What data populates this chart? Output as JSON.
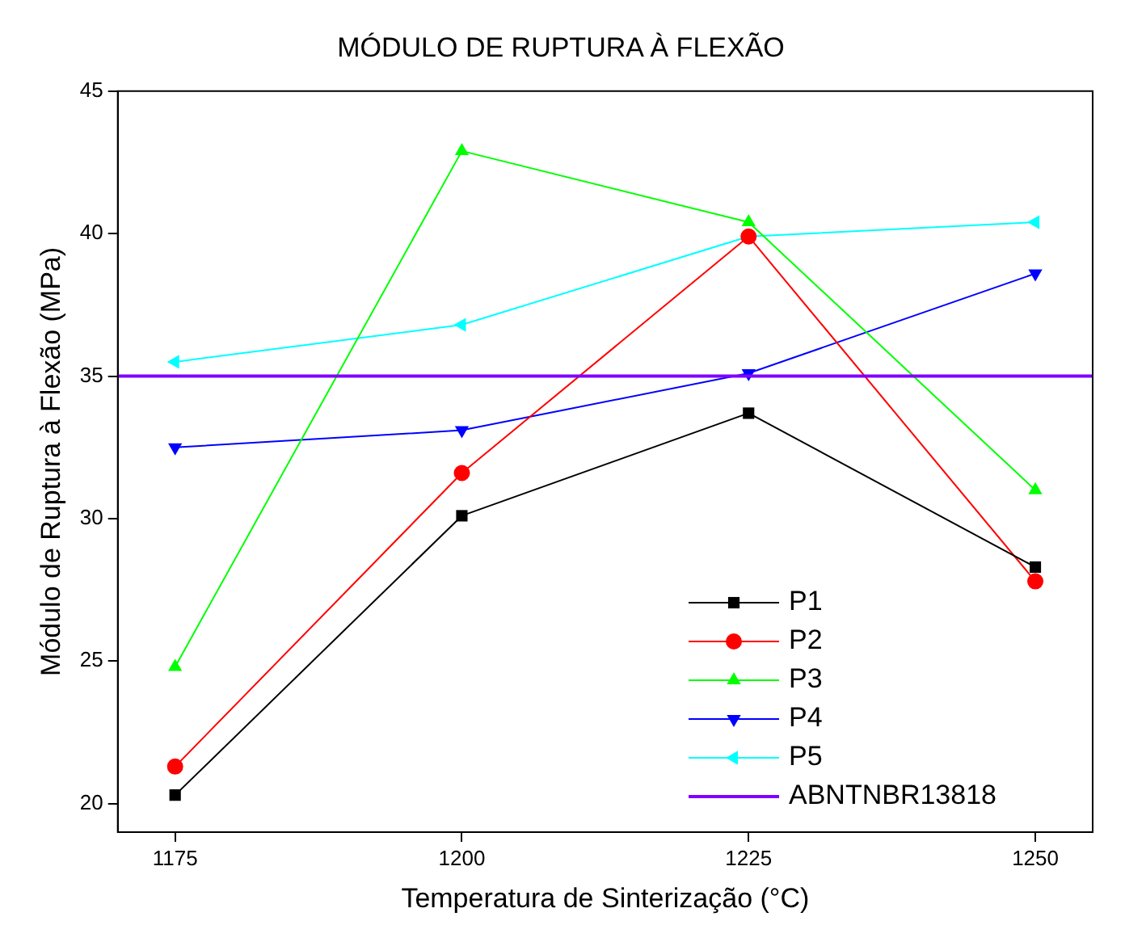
{
  "chart_data": {
    "type": "line",
    "title": "MÓDULO DE RUPTURA À FLEXÃO",
    "xlabel": "Temperatura de Sinterização (°C)",
    "ylabel": "Módulo de Ruptura à Flexão (MPa)",
    "x": [
      1175,
      1200,
      1225,
      1250
    ],
    "xlim": [
      1170,
      1255
    ],
    "xticks": [
      1175,
      1200,
      1225,
      1250
    ],
    "ylim": [
      19,
      45
    ],
    "yticks": [
      20,
      25,
      30,
      35,
      40,
      45
    ],
    "grid": false,
    "legend": "bottom right",
    "line_style": "solid",
    "series": [
      {
        "name": "P1",
        "color": "#000000",
        "marker": "square",
        "values": [
          20.3,
          30.1,
          33.7,
          28.3
        ]
      },
      {
        "name": "P2",
        "color": "#ff0000",
        "marker": "circle",
        "values": [
          21.3,
          31.6,
          39.9,
          27.8
        ]
      },
      {
        "name": "P3",
        "color": "#00ff00",
        "marker": "triangle",
        "values": [
          24.8,
          42.9,
          40.4,
          31.0
        ]
      },
      {
        "name": "P4",
        "color": "#0000ff",
        "marker": "triangle-down",
        "values": [
          32.5,
          33.1,
          35.1,
          38.6
        ]
      },
      {
        "name": "P5",
        "color": "#00ffff",
        "marker": "triangle-left",
        "values": [
          35.5,
          36.8,
          39.9,
          40.4
        ]
      }
    ],
    "ref_lines": [
      {
        "axis": "y",
        "value": 35,
        "label": "ABNTNBR13818",
        "color": "#8000ff"
      }
    ]
  }
}
